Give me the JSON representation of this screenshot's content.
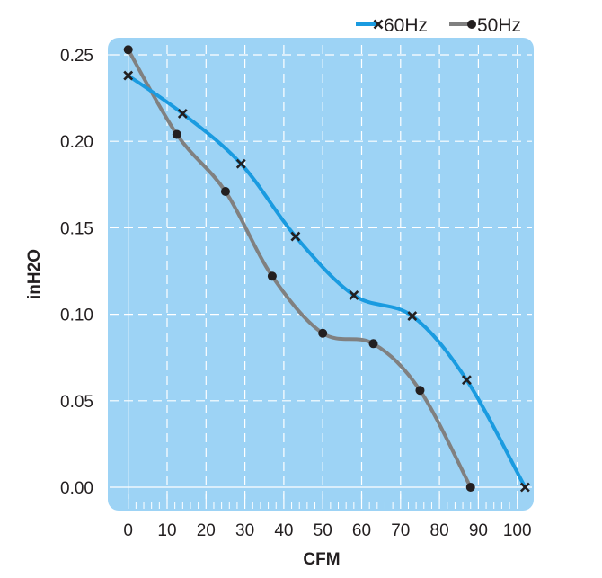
{
  "chart_data": {
    "type": "line",
    "title": "",
    "xlabel": "CFM",
    "ylabel": "inH2O",
    "xlim": [
      0,
      100
    ],
    "ylim": [
      0,
      0.25
    ],
    "xticks": [
      "0",
      "10",
      "20",
      "30",
      "40",
      "50",
      "60",
      "70",
      "80",
      "90",
      "100"
    ],
    "yticks": [
      "0.00",
      "0.05",
      "0.10",
      "0.15",
      "0.20",
      "0.25"
    ],
    "grid": true,
    "legend_position": "top-right",
    "background_color": "#9dd3f5",
    "series": [
      {
        "name": "60Hz",
        "color": "#1a9be0",
        "marker": "x",
        "x": [
          0,
          14,
          29,
          43,
          58,
          73,
          87,
          102
        ],
        "y": [
          0.238,
          0.216,
          0.187,
          0.145,
          0.111,
          0.099,
          0.062,
          0.0
        ]
      },
      {
        "name": "50Hz",
        "color": "#808080",
        "marker": "dot",
        "x": [
          0,
          12.5,
          25,
          37,
          50,
          63,
          75,
          88
        ],
        "y": [
          0.253,
          0.204,
          0.171,
          0.122,
          0.089,
          0.083,
          0.056,
          0.0
        ]
      }
    ]
  }
}
